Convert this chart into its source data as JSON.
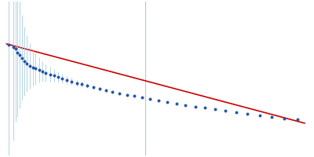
{
  "background_color": "#ffffff",
  "point_color": "#2255aa",
  "error_bar_color": "#aaccdd",
  "fit_line_color": "#cc0000",
  "vertical_line_color": "#aaccdd",
  "figsize": [
    4.0,
    2.0
  ],
  "dpi": 100,
  "data_points": {
    "x": [
      0.0004,
      0.001,
      0.0018,
      0.0026,
      0.0034,
      0.0044,
      0.0054,
      0.0064,
      0.0074,
      0.0086,
      0.0098,
      0.011,
      0.0124,
      0.0138,
      0.0152,
      0.0168,
      0.0184,
      0.02,
      0.0218,
      0.0236,
      0.0256,
      0.0276,
      0.0298,
      0.032,
      0.0344,
      0.0368,
      0.0394,
      0.042,
      0.0448,
      0.0476,
      0.0506,
      0.0536,
      0.0568,
      0.06,
      0.0634,
      0.0668,
      0.0704,
      0.074,
      0.0778,
      0.0818,
      0.086,
      0.0902,
      0.0946,
      0.0992
    ],
    "y": [
      13.5,
      13.2,
      13.0,
      12.8,
      12.55,
      12.35,
      12.2,
      12.1,
      12.0,
      11.9,
      11.78,
      11.68,
      11.57,
      11.47,
      11.36,
      11.25,
      11.14,
      11.03,
      10.92,
      10.81,
      10.7,
      10.59,
      10.48,
      10.37,
      10.26,
      10.15,
      10.04,
      9.93,
      9.82,
      9.71,
      9.6,
      9.49,
      9.38,
      9.27,
      9.16,
      9.05,
      8.94,
      8.83,
      8.72,
      8.61,
      8.5,
      8.39,
      8.28,
      8.17
    ],
    "yerr_large": [
      5.5,
      4.8,
      4.0,
      3.2,
      2.6,
      2.1,
      1.7,
      1.4,
      1.15,
      0.95,
      0.78,
      0.65,
      0.55,
      0.47,
      0.4,
      0.35,
      0.3,
      0.26,
      0.23,
      0.2,
      0.18,
      0.16,
      0.14,
      0.13,
      0.12,
      0.11,
      0.1,
      0.095,
      0.09,
      0.085,
      0.08,
      0.077,
      0.074,
      0.071,
      0.068,
      0.065,
      0.063,
      0.061,
      0.059,
      0.057,
      0.055,
      0.053,
      0.051,
      0.05
    ]
  },
  "extra_large_bars": {
    "x": [
      -0.002,
      -0.0005
    ],
    "y": [
      13.8,
      13.6
    ],
    "yerr": [
      8.5,
      7.0
    ]
  },
  "fit_line": {
    "x": [
      -0.003,
      0.102
    ],
    "y": [
      13.85,
      7.9
    ]
  },
  "vertical_line_x": 0.046,
  "xlim": [
    -0.004,
    0.104
  ],
  "ylim": [
    5.5,
    17.0
  ]
}
